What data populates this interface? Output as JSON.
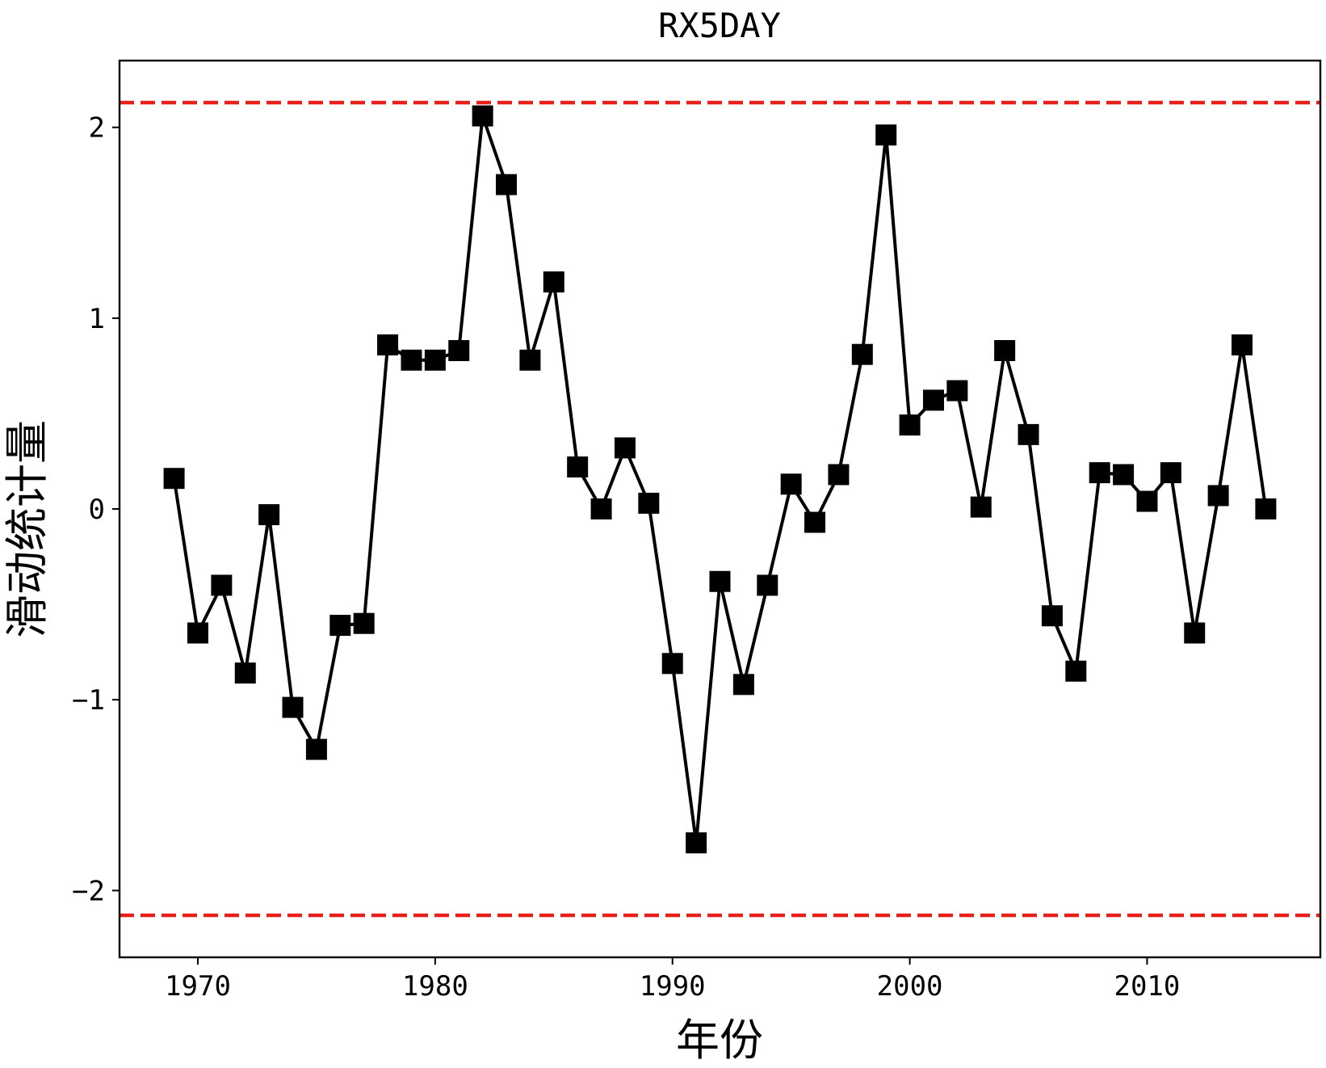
{
  "chart_data": {
    "type": "line",
    "title": "RX5DAY",
    "xlabel": "年份",
    "ylabel": "滑动统计量",
    "xlim": [
      1966.7,
      2017.3
    ],
    "ylim": [
      -2.35,
      2.35
    ],
    "xticks": [
      1970,
      1980,
      1990,
      2000,
      2010
    ],
    "xtick_labels": [
      "1970",
      "1980",
      "1990",
      "2000",
      "2010"
    ],
    "yticks": [
      -2,
      -1,
      0,
      1,
      2
    ],
    "ytick_labels": [
      "−2",
      "−1",
      "0",
      "1",
      "2"
    ],
    "grid": false,
    "series": [
      {
        "color": "#000000",
        "marker": "square",
        "x": [
          1969,
          1970,
          1971,
          1972,
          1973,
          1974,
          1975,
          1976,
          1977,
          1978,
          1979,
          1980,
          1981,
          1982,
          1983,
          1984,
          1985,
          1986,
          1987,
          1988,
          1989,
          1990,
          1991,
          1992,
          1993,
          1994,
          1995,
          1996,
          1997,
          1998,
          1999,
          2000,
          2001,
          2002,
          2003,
          2004,
          2005,
          2006,
          2007,
          2008,
          2009,
          2010,
          2011,
          2012,
          2013,
          2014,
          2015
        ],
        "values": [
          0.16,
          -0.65,
          -0.4,
          -0.86,
          -0.03,
          -1.04,
          -1.26,
          -0.61,
          -0.6,
          0.86,
          0.78,
          0.78,
          0.83,
          2.06,
          1.7,
          0.78,
          1.19,
          0.22,
          0.0,
          0.32,
          0.03,
          -0.81,
          -1.75,
          -0.38,
          -0.92,
          -0.4,
          0.13,
          -0.07,
          0.18,
          0.81,
          1.96,
          0.44,
          0.57,
          0.62,
          0.01,
          0.83,
          0.39,
          -0.56,
          -0.85,
          0.19,
          0.18,
          0.04,
          0.19,
          -0.65,
          0.07,
          0.86,
          0.0
        ]
      }
    ],
    "reference_lines": [
      {
        "y": 2.13,
        "color": "#e8201c",
        "style": "dashed"
      },
      {
        "y": -2.13,
        "color": "#e8201c",
        "style": "dashed"
      }
    ]
  }
}
